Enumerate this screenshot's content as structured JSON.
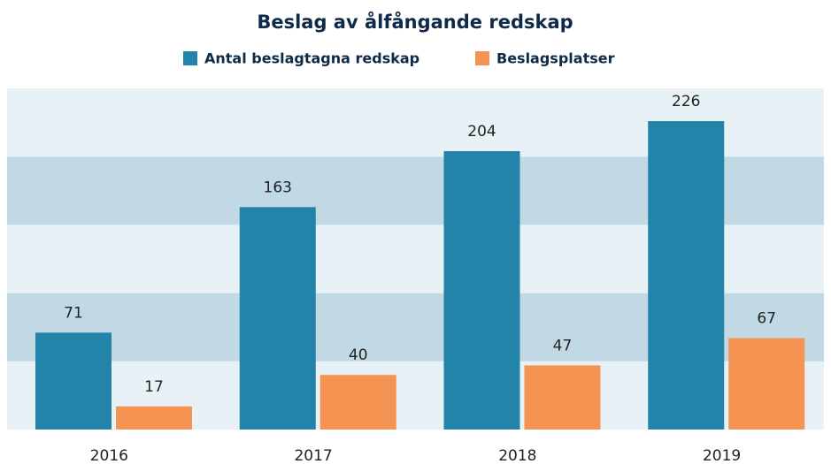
{
  "chart_data": {
    "type": "bar",
    "title": "Beslag av ålfångande redskap",
    "categories": [
      "2016",
      "2017",
      "2018",
      "2019"
    ],
    "series": [
      {
        "name": "Antal beslagtagna redskap",
        "color": "#2383a8",
        "values": [
          71,
          163,
          204,
          226
        ]
      },
      {
        "name": "Beslagsplatser",
        "color": "#f59352",
        "values": [
          17,
          40,
          47,
          67
        ]
      }
    ],
    "ylim": [
      0,
      250
    ],
    "yticks": [
      0,
      50,
      100,
      150,
      200,
      250
    ],
    "band_colors": [
      "#e8f1f6",
      "#c0d9e4"
    ]
  }
}
